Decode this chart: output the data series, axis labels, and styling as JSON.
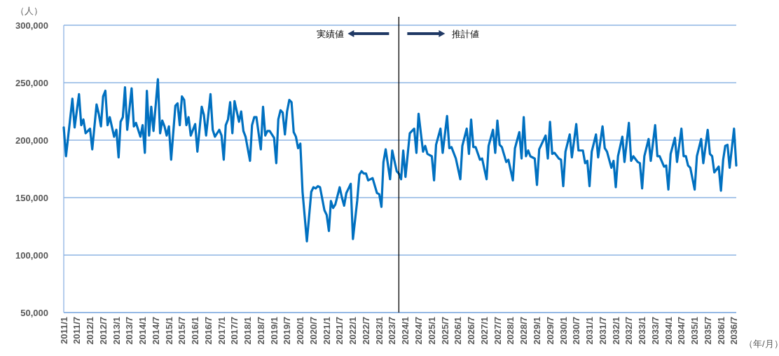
{
  "chart_data": {
    "type": "line",
    "ylabel": "（人）",
    "xlabel": "（年/月）",
    "annotations": [
      "実績値",
      "推計値"
    ],
    "ref_lines": [
      {
        "axis": "x",
        "value": "2023-10",
        "color": "#000000"
      }
    ],
    "grid": "y",
    "xlim": [
      "2011-01",
      "2036-08"
    ],
    "ylim": [
      50000,
      300000
    ],
    "yticks": [
      {
        "value": 50000,
        "label": "50,000"
      },
      {
        "value": 100000,
        "label": "100,000"
      },
      {
        "value": 150000,
        "label": "150,000"
      },
      {
        "value": 200000,
        "label": "200,000"
      },
      {
        "value": 250000,
        "label": "250,000"
      },
      {
        "value": 300000,
        "label": "300,000"
      }
    ],
    "xticks": [
      {
        "value": "2011-01",
        "label": "2011/1"
      },
      {
        "value": "2011-07",
        "label": "2011/7"
      },
      {
        "value": "2012-01",
        "label": "2012/1"
      },
      {
        "value": "2012-07",
        "label": "2012/7"
      },
      {
        "value": "2013-01",
        "label": "2013/1"
      },
      {
        "value": "2013-07",
        "label": "2013/7"
      },
      {
        "value": "2014-01",
        "label": "2014/1"
      },
      {
        "value": "2014-07",
        "label": "2014/7"
      },
      {
        "value": "2015-01",
        "label": "2015/1"
      },
      {
        "value": "2015-07",
        "label": "2015/7"
      },
      {
        "value": "2016-01",
        "label": "2016/1"
      },
      {
        "value": "2016-07",
        "label": "2016/7"
      },
      {
        "value": "2017-01",
        "label": "2017/1"
      },
      {
        "value": "2017-07",
        "label": "2017/7"
      },
      {
        "value": "2018-01",
        "label": "2018/1"
      },
      {
        "value": "2018-07",
        "label": "2018/7"
      },
      {
        "value": "2019-01",
        "label": "2019/1"
      },
      {
        "value": "2019-07",
        "label": "2019/7"
      },
      {
        "value": "2020-01",
        "label": "2020/1"
      },
      {
        "value": "2020-07",
        "label": "2020/7"
      },
      {
        "value": "2021-01",
        "label": "2021/1"
      },
      {
        "value": "2021-07",
        "label": "2021/7"
      },
      {
        "value": "2022-01",
        "label": "2022/1"
      },
      {
        "value": "2022-07",
        "label": "2022/7"
      },
      {
        "value": "2023-01",
        "label": "2023/1"
      },
      {
        "value": "2023-07",
        "label": "2023/7"
      },
      {
        "value": "2024-01",
        "label": "2024/1"
      },
      {
        "value": "2024-07",
        "label": "2024/7"
      },
      {
        "value": "2025-01",
        "label": "2025/1"
      },
      {
        "value": "2025-07",
        "label": "2025/7"
      },
      {
        "value": "2026-01",
        "label": "2026/1"
      },
      {
        "value": "2026-07",
        "label": "2026/7"
      },
      {
        "value": "2027-01",
        "label": "2027/1"
      },
      {
        "value": "2027-07",
        "label": "2027/7"
      },
      {
        "value": "2028-01",
        "label": "2028/1"
      },
      {
        "value": "2028-07",
        "label": "2028/7"
      },
      {
        "value": "2029-01",
        "label": "2029/1"
      },
      {
        "value": "2029-07",
        "label": "2029/7"
      },
      {
        "value": "2030-01",
        "label": "2030/1"
      },
      {
        "value": "2030-07",
        "label": "2030/7"
      },
      {
        "value": "2031-01",
        "label": "2031/1"
      },
      {
        "value": "2031-07",
        "label": "2031/7"
      },
      {
        "value": "2032-01",
        "label": "2032/1"
      },
      {
        "value": "2032-07",
        "label": "2032/7"
      },
      {
        "value": "2033-01",
        "label": "2033/1"
      },
      {
        "value": "2033-07",
        "label": "2033/7"
      },
      {
        "value": "2034-01",
        "label": "2034/1"
      },
      {
        "value": "2034-07",
        "label": "2034/7"
      },
      {
        "value": "2035-01",
        "label": "2035/1"
      },
      {
        "value": "2035-07",
        "label": "2035/7"
      },
      {
        "value": "2036-01",
        "label": "2036/1"
      },
      {
        "value": "2036-07",
        "label": "2036/7"
      }
    ],
    "series": [
      {
        "color": "#0070c0",
        "x": [
          "2011-01",
          "2011-02",
          "2011-05",
          "2011-06",
          "2011-08",
          "2011-09",
          "2011-10",
          "2011-11",
          "2012-01",
          "2012-02",
          "2012-04",
          "2012-05",
          "2012-06",
          "2012-07",
          "2012-08",
          "2012-09",
          "2012-10",
          "2012-12",
          "2013-01",
          "2013-02",
          "2013-03",
          "2013-04",
          "2013-05",
          "2013-06",
          "2013-08",
          "2013-09",
          "2013-10",
          "2013-12",
          "2014-01",
          "2014-02",
          "2014-03",
          "2014-04",
          "2014-05",
          "2014-06",
          "2014-08",
          "2014-09",
          "2014-10",
          "2014-11",
          "2014-12",
          "2015-01",
          "2015-02",
          "2015-04",
          "2015-05",
          "2015-06",
          "2015-07",
          "2015-08",
          "2015-09",
          "2015-10",
          "2015-11",
          "2016-01",
          "2016-02",
          "2016-04",
          "2016-05",
          "2016-06",
          "2016-08",
          "2016-09",
          "2016-10",
          "2016-12",
          "2017-01",
          "2017-02",
          "2017-03",
          "2017-04",
          "2017-05",
          "2017-06",
          "2017-07",
          "2017-09",
          "2017-10",
          "2017-11",
          "2017-12",
          "2018-02",
          "2018-03",
          "2018-04",
          "2018-05",
          "2018-07",
          "2018-08",
          "2018-09",
          "2018-10",
          "2018-11",
          "2019-01",
          "2019-02",
          "2019-03",
          "2019-04",
          "2019-05",
          "2019-06",
          "2019-07",
          "2019-08",
          "2019-09",
          "2019-10",
          "2019-11",
          "2019-12",
          "2020-01",
          "2020-02",
          "2020-04",
          "2020-06",
          "2020-07",
          "2020-08",
          "2020-09",
          "2020-10",
          "2020-12",
          "2021-01",
          "2021-02",
          "2021-03",
          "2021-04",
          "2021-05",
          "2021-07",
          "2021-08",
          "2021-09",
          "2021-10",
          "2021-11",
          "2021-12",
          "2022-01",
          "2022-03",
          "2022-04",
          "2022-05",
          "2022-06",
          "2022-07",
          "2022-08",
          "2022-10",
          "2022-12",
          "2023-01",
          "2023-02",
          "2023-03",
          "2023-04",
          "2023-06",
          "2023-07",
          "2023-09",
          "2023-10",
          "2023-11",
          "2023-12",
          "2024-01",
          "2024-03",
          "2024-05",
          "2024-06",
          "2024-07",
          "2024-09",
          "2024-10",
          "2024-11",
          "2025-01",
          "2025-02",
          "2025-03",
          "2025-05",
          "2025-06",
          "2025-08",
          "2025-09",
          "2025-10",
          "2025-12",
          "2026-02",
          "2026-03",
          "2026-05",
          "2026-06",
          "2026-07",
          "2026-08",
          "2026-09",
          "2026-11",
          "2026-12",
          "2027-02",
          "2027-03",
          "2027-05",
          "2027-06",
          "2027-07",
          "2027-08",
          "2027-09",
          "2027-11",
          "2027-12",
          "2028-02",
          "2028-03",
          "2028-05",
          "2028-06",
          "2028-07",
          "2028-08",
          "2028-09",
          "2028-10",
          "2028-12",
          "2029-01",
          "2029-02",
          "2029-05",
          "2029-06",
          "2029-07",
          "2029-08",
          "2029-09",
          "2029-11",
          "2029-12",
          "2030-01",
          "2030-02",
          "2030-04",
          "2030-05",
          "2030-07",
          "2030-08",
          "2030-10",
          "2030-11",
          "2030-12",
          "2031-01",
          "2031-02",
          "2031-04",
          "2031-05",
          "2031-07",
          "2031-08",
          "2031-09",
          "2031-11",
          "2031-12",
          "2032-01",
          "2032-02",
          "2032-04",
          "2032-05",
          "2032-07",
          "2032-08",
          "2032-09",
          "2032-11",
          "2032-12",
          "2033-01",
          "2033-02",
          "2033-04",
          "2033-05",
          "2033-07",
          "2033-08",
          "2033-09",
          "2033-11",
          "2033-12",
          "2034-01",
          "2034-02",
          "2034-04",
          "2034-05",
          "2034-07",
          "2034-08",
          "2034-09",
          "2034-10",
          "2034-11",
          "2035-01",
          "2035-02",
          "2035-04",
          "2035-05",
          "2035-07",
          "2035-08",
          "2035-09",
          "2035-10",
          "2035-12",
          "2036-01",
          "2036-02",
          "2036-03",
          "2036-04",
          "2036-05",
          "2036-07",
          "2036-08"
        ],
        "values": [
          211000,
          186000,
          236000,
          211000,
          240000,
          213000,
          218000,
          206000,
          210000,
          192000,
          231000,
          223000,
          212000,
          238000,
          243000,
          213000,
          220000,
          203000,
          209000,
          185000,
          216000,
          220000,
          246000,
          209000,
          245000,
          212000,
          215000,
          203000,
          213000,
          189000,
          243000,
          204000,
          229000,
          208000,
          253000,
          206000,
          217000,
          212000,
          204000,
          212000,
          183000,
          230000,
          232000,
          213000,
          238000,
          235000,
          213000,
          220000,
          204000,
          214000,
          190000,
          229000,
          222000,
          204000,
          240000,
          209000,
          203000,
          209000,
          204000,
          183000,
          213000,
          218000,
          233000,
          206000,
          234000,
          216000,
          225000,
          208000,
          203000,
          182000,
          213000,
          220000,
          220000,
          192000,
          229000,
          204000,
          208000,
          208000,
          202000,
          180000,
          218000,
          226000,
          224000,
          205000,
          225000,
          235000,
          233000,
          207000,
          203000,
          193000,
          197000,
          155000,
          112000,
          155000,
          159000,
          158000,
          160000,
          159000,
          139000,
          135000,
          121000,
          147000,
          141000,
          144000,
          159000,
          150000,
          143000,
          154000,
          158000,
          162000,
          114000,
          147000,
          170000,
          173000,
          171000,
          171000,
          165000,
          167000,
          154000,
          153000,
          142000,
          181000,
          192000,
          166000,
          191000,
          173000,
          171000,
          166000,
          191000,
          168000,
          206000,
          210000,
          189000,
          223000,
          190000,
          195000,
          188000,
          186000,
          165000,
          196000,
          210000,
          189000,
          221000,
          193000,
          194000,
          184000,
          166000,
          195000,
          210000,
          188000,
          218000,
          194000,
          194000,
          183000,
          184000,
          166000,
          195000,
          209000,
          189000,
          217000,
          196000,
          194000,
          181000,
          183000,
          165000,
          193000,
          207000,
          184000,
          220000,
          186000,
          191000,
          186000,
          184000,
          161000,
          192000,
          204000,
          184000,
          216000,
          188000,
          189000,
          184000,
          183000,
          160000,
          190000,
          205000,
          185000,
          214000,
          191000,
          191000,
          180000,
          182000,
          160000,
          190000,
          205000,
          185000,
          212000,
          193000,
          190000,
          176000,
          182000,
          159000,
          186000,
          203000,
          181000,
          215000,
          182000,
          186000,
          181000,
          180000,
          158000,
          186000,
          201000,
          182000,
          213000,
          186000,
          186000,
          177000,
          178000,
          157000,
          188000,
          202000,
          181000,
          210000,
          186000,
          186000,
          178000,
          176000,
          157000,
          186000,
          201000,
          180000,
          209000,
          188000,
          186000,
          172000,
          177000,
          156000,
          183000,
          195000,
          196000,
          176000,
          210000,
          178000
        ]
      }
    ]
  }
}
